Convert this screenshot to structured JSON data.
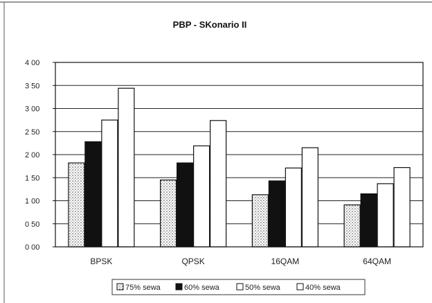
{
  "chart_data": {
    "type": "bar",
    "title": "PBP - SKonario II",
    "xlabel": "",
    "ylabel": "",
    "categories": [
      "BPSK",
      "QPSK",
      "16QAM",
      "64QAM"
    ],
    "ylim": [
      0,
      4
    ],
    "yticks": [
      "0 00",
      "0 50",
      "1 00",
      "1 50",
      "2 00",
      "2 50",
      "3 00",
      "3 50",
      "4 00"
    ],
    "grid": true,
    "legend_position": "bottom",
    "series": [
      {
        "name": "75% sewa",
        "values": [
          1.82,
          1.45,
          1.13,
          0.91
        ],
        "fill": "dotted"
      },
      {
        "name": "60% sewa",
        "values": [
          2.28,
          1.82,
          1.43,
          1.15
        ],
        "fill": "black"
      },
      {
        "name": "50% sewa",
        "values": [
          2.75,
          2.19,
          1.71,
          1.37
        ],
        "fill": "white"
      },
      {
        "name": "40% sewa",
        "values": [
          3.44,
          2.74,
          2.15,
          1.72
        ],
        "fill": "white"
      }
    ],
    "colors": {
      "black": "#111111",
      "white": "#ffffff",
      "stroke": "#111111",
      "grid": "#222222"
    }
  }
}
